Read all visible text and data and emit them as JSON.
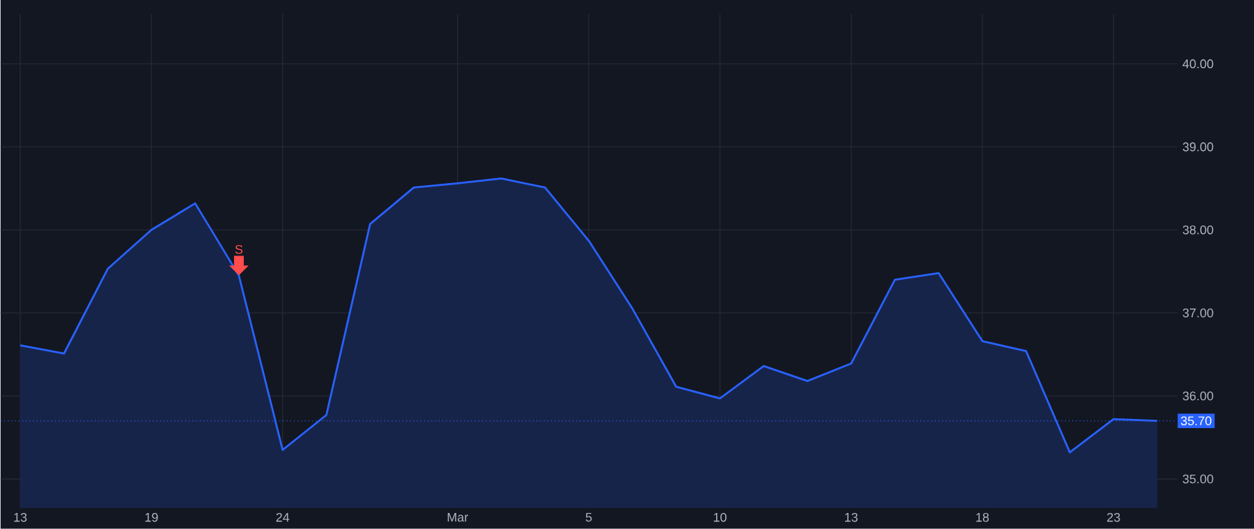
{
  "chart_data": {
    "type": "area",
    "categories": [
      "13",
      null,
      null,
      "19",
      null,
      null,
      "24",
      null,
      null,
      null,
      "Mar",
      null,
      null,
      "5",
      null,
      null,
      "10",
      null,
      null,
      "13",
      null,
      null,
      "18",
      null,
      null,
      "23",
      null
    ],
    "series": [
      {
        "color": "#2962ff",
        "values": [
          36.61,
          36.51,
          37.53,
          38.0,
          38.32,
          37.45,
          35.35,
          35.77,
          38.07,
          38.51,
          38.56,
          38.62,
          38.51,
          37.87,
          37.05,
          36.11,
          35.97,
          36.36,
          36.18,
          36.39,
          37.4,
          37.48,
          36.66,
          36.54,
          35.32,
          35.72,
          35.7
        ]
      }
    ],
    "ylim": [
      34.65,
      40.6
    ],
    "yticks": [
      {
        "value": 35,
        "label": "35.00"
      },
      {
        "value": 36,
        "label": "36.00"
      },
      {
        "value": 37,
        "label": "37.00"
      },
      {
        "value": 38,
        "label": "38.00"
      },
      {
        "value": 39,
        "label": "39.00"
      },
      {
        "value": 40,
        "label": "40.00"
      }
    ],
    "grid": true,
    "marker": "none",
    "line_style": "solid",
    "ref_lines": [
      {
        "axis": "y",
        "value": 35.7,
        "label": "35.70",
        "color": "#2962ff",
        "line_style": "dotted"
      }
    ],
    "annotations": [
      {
        "text": "S",
        "y": 37.45
      }
    ]
  }
}
